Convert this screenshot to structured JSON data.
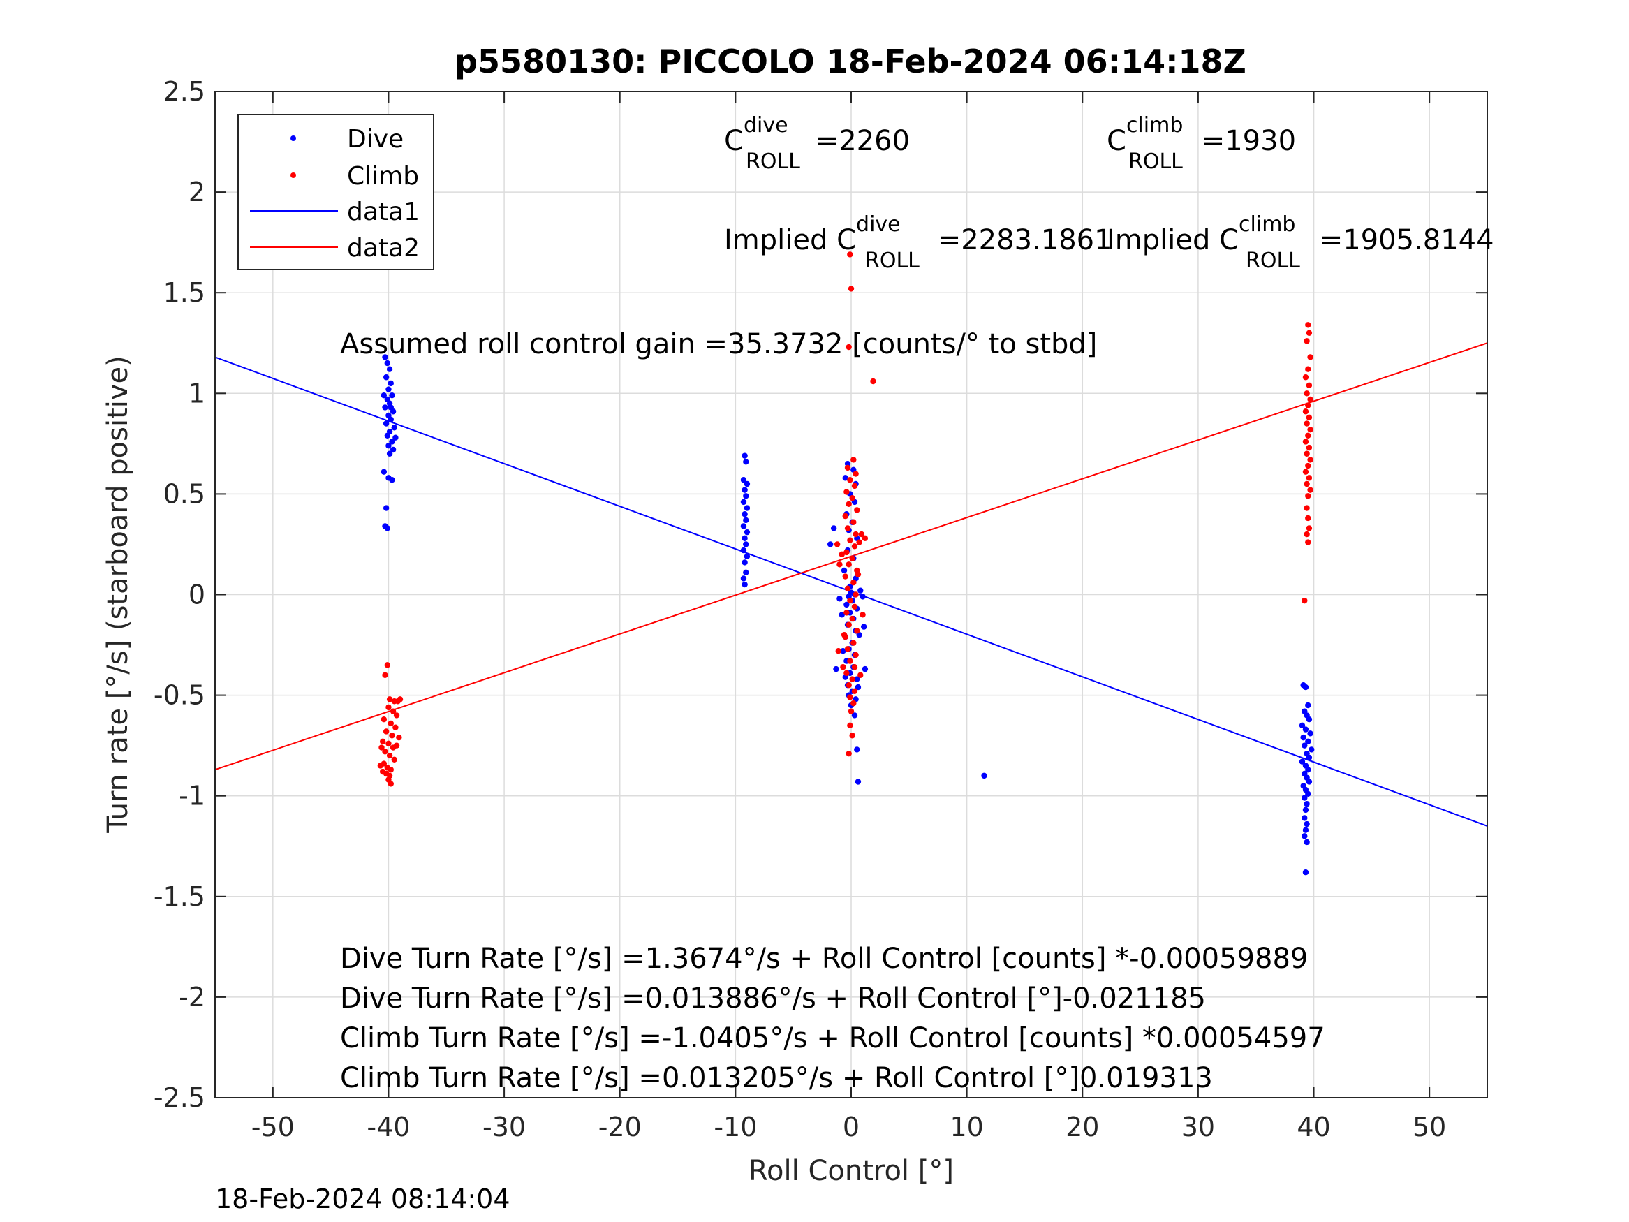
{
  "timestamp": "18-Feb-2024 08:14:04",
  "colors": {
    "dive": "#0000ff",
    "climb": "#ff0000",
    "grid": "#dcdcdc",
    "axis": "#262626"
  },
  "annotations": {
    "c_dive": {
      "pre": "C",
      "sup": "dive",
      "sub": "ROLL",
      "post": " =2260"
    },
    "c_climb": {
      "pre": "C",
      "sup": "climb",
      "sub": "ROLL",
      "post": " =1930"
    },
    "implied_dive": {
      "pre": "Implied C",
      "sup": "dive",
      "sub": "ROLL",
      "post": " =2283.1861"
    },
    "implied_climb": {
      "pre": "Implied C",
      "sup": "climb",
      "sub": "ROLL",
      "post": " =1905.8144"
    },
    "gain": "Assumed roll control gain =35.3732 [counts/° to stbd]",
    "eq1": "Dive Turn Rate [°/s] =1.3674°/s + Roll Control [counts] *-0.00059889",
    "eq2": "Dive Turn Rate [°/s] =0.013886°/s + Roll Control [°]-0.021185",
    "eq3": "Climb Turn Rate [°/s] =-1.0405°/s + Roll Control [counts] *0.00054597",
    "eq4": "Climb Turn Rate [°/s] =0.013205°/s + Roll Control [°]0.019313"
  },
  "chart_data": {
    "type": "scatter",
    "title": "p5580130: PICCOLO 18-Feb-2024 06:14:18Z",
    "xlabel": "Roll Control [°]",
    "ylabel": "Turn rate [°/s] (starboard positive)",
    "xlim": [
      -55,
      55
    ],
    "ylim": [
      -2.5,
      2.5
    ],
    "xticks": [
      -50,
      -40,
      -30,
      -20,
      -10,
      0,
      10,
      20,
      30,
      40,
      50
    ],
    "yticks": [
      2.5,
      2,
      1.5,
      1,
      0.5,
      0,
      -0.5,
      -1,
      -1.5,
      -2,
      -2.5
    ],
    "grid": true,
    "legend": {
      "placement": "top-left",
      "entries": [
        "Dive",
        "Climb",
        "data1",
        "data2"
      ]
    },
    "series": [
      {
        "name": "Dive",
        "kind": "points",
        "points": [
          [
            -40.3,
            1.18
          ],
          [
            -40.1,
            1.15
          ],
          [
            -39.9,
            1.12
          ],
          [
            -40.2,
            1.08
          ],
          [
            -39.8,
            1.05
          ],
          [
            -40.0,
            1.02
          ],
          [
            -39.7,
            0.99
          ],
          [
            -40.1,
            0.97
          ],
          [
            -39.9,
            0.95
          ],
          [
            -40.3,
            0.93
          ],
          [
            -39.6,
            0.91
          ],
          [
            -40.0,
            0.89
          ],
          [
            -39.8,
            0.87
          ],
          [
            -40.2,
            0.85
          ],
          [
            -39.5,
            0.83
          ],
          [
            -39.9,
            0.81
          ],
          [
            -40.1,
            0.79
          ],
          [
            -39.4,
            0.78
          ],
          [
            -39.7,
            0.76
          ],
          [
            -40.0,
            0.74
          ],
          [
            -39.6,
            0.72
          ],
          [
            -39.9,
            0.7
          ],
          [
            -40.4,
            0.61
          ],
          [
            -40.0,
            0.58
          ],
          [
            -39.7,
            0.57
          ],
          [
            -40.2,
            0.43
          ],
          [
            -40.3,
            0.34
          ],
          [
            -40.1,
            0.33
          ],
          [
            -39.8,
            0.93
          ],
          [
            -40.4,
            0.99
          ],
          [
            -9.2,
            0.69
          ],
          [
            -9.1,
            0.66
          ],
          [
            -9.3,
            0.57
          ],
          [
            -9.0,
            0.55
          ],
          [
            -9.2,
            0.52
          ],
          [
            -9.1,
            0.49
          ],
          [
            -9.3,
            0.46
          ],
          [
            -9.0,
            0.43
          ],
          [
            -9.2,
            0.4
          ],
          [
            -9.1,
            0.37
          ],
          [
            -9.3,
            0.34
          ],
          [
            -9.0,
            0.31
          ],
          [
            -9.2,
            0.28
          ],
          [
            -9.1,
            0.25
          ],
          [
            -9.3,
            0.22
          ],
          [
            -9.0,
            0.19
          ],
          [
            -9.2,
            0.16
          ],
          [
            -9.1,
            0.11
          ],
          [
            -9.3,
            0.08
          ],
          [
            -9.2,
            0.05
          ],
          [
            -0.3,
            0.65
          ],
          [
            0.2,
            0.62
          ],
          [
            -0.5,
            0.58
          ],
          [
            0.4,
            0.55
          ],
          [
            -0.1,
            0.5
          ],
          [
            0.3,
            0.46
          ],
          [
            -0.4,
            0.4
          ],
          [
            0.1,
            0.36
          ],
          [
            -0.2,
            0.32
          ],
          [
            0.5,
            0.28
          ],
          [
            -0.3,
            0.22
          ],
          [
            0.2,
            0.18
          ],
          [
            -0.6,
            0.12
          ],
          [
            0.4,
            0.08
          ],
          [
            -0.1,
            0.04
          ],
          [
            0.0,
            0.01
          ],
          [
            0.3,
            0.0
          ],
          [
            -0.2,
            -0.01
          ],
          [
            0.1,
            -0.03
          ],
          [
            -0.4,
            -0.05
          ],
          [
            0.5,
            -0.07
          ],
          [
            -0.1,
            -0.09
          ],
          [
            0.2,
            -0.12
          ],
          [
            -0.3,
            -0.15
          ],
          [
            0.4,
            -0.18
          ],
          [
            -0.5,
            -0.21
          ],
          [
            0.1,
            -0.24
          ],
          [
            -0.2,
            -0.27
          ],
          [
            0.3,
            -0.3
          ],
          [
            -0.4,
            -0.33
          ],
          [
            0.2,
            -0.36
          ],
          [
            -0.1,
            -0.39
          ],
          [
            0.5,
            -0.42
          ],
          [
            -0.3,
            -0.45
          ],
          [
            0.1,
            -0.48
          ],
          [
            -0.2,
            -0.5
          ],
          [
            0.4,
            -0.52
          ],
          [
            0.0,
            -0.55
          ],
          [
            -0.5,
            -0.41
          ],
          [
            0.6,
            -0.46
          ],
          [
            -0.7,
            -0.28
          ],
          [
            0.7,
            -0.2
          ],
          [
            -0.8,
            -0.1
          ],
          [
            0.8,
            0.02
          ],
          [
            -1.0,
            -0.02
          ],
          [
            1.0,
            -0.01
          ],
          [
            -1.3,
            -0.37
          ],
          [
            1.2,
            -0.37
          ],
          [
            -1.8,
            0.25
          ],
          [
            -1.5,
            0.33
          ],
          [
            1.1,
            -0.16
          ],
          [
            0.3,
            -0.6
          ],
          [
            0.5,
            -0.77
          ],
          [
            0.6,
            -0.93
          ],
          [
            11.5,
            -0.9
          ],
          [
            39.1,
            -0.45
          ],
          [
            39.3,
            -0.46
          ],
          [
            39.5,
            -0.55
          ],
          [
            39.2,
            -0.58
          ],
          [
            39.4,
            -0.6
          ],
          [
            39.6,
            -0.62
          ],
          [
            39.0,
            -0.65
          ],
          [
            39.3,
            -0.67
          ],
          [
            39.7,
            -0.69
          ],
          [
            39.1,
            -0.71
          ],
          [
            39.5,
            -0.73
          ],
          [
            39.2,
            -0.75
          ],
          [
            39.8,
            -0.77
          ],
          [
            39.4,
            -0.79
          ],
          [
            39.6,
            -0.81
          ],
          [
            39.0,
            -0.83
          ],
          [
            39.3,
            -0.85
          ],
          [
            39.5,
            -0.87
          ],
          [
            39.2,
            -0.89
          ],
          [
            39.4,
            -0.91
          ],
          [
            39.6,
            -0.93
          ],
          [
            39.1,
            -0.95
          ],
          [
            39.3,
            -0.97
          ],
          [
            39.5,
            -0.99
          ],
          [
            39.2,
            -1.01
          ],
          [
            39.4,
            -1.04
          ],
          [
            39.3,
            -1.07
          ],
          [
            39.2,
            -1.11
          ],
          [
            39.4,
            -1.14
          ],
          [
            39.3,
            -1.17
          ],
          [
            39.2,
            -1.2
          ],
          [
            39.4,
            -1.23
          ],
          [
            39.3,
            -1.38
          ]
        ]
      },
      {
        "name": "Climb",
        "kind": "points",
        "points": [
          [
            -40.1,
            -0.35
          ],
          [
            -40.3,
            -0.4
          ],
          [
            -39.9,
            -0.52
          ],
          [
            -39.5,
            -0.53
          ],
          [
            -39.2,
            -0.53
          ],
          [
            -39.0,
            -0.52
          ],
          [
            -40.0,
            -0.56
          ],
          [
            -39.6,
            -0.58
          ],
          [
            -39.3,
            -0.6
          ],
          [
            -40.4,
            -0.62
          ],
          [
            -39.8,
            -0.64
          ],
          [
            -39.4,
            -0.66
          ],
          [
            -40.2,
            -0.68
          ],
          [
            -39.7,
            -0.7
          ],
          [
            -39.1,
            -0.71
          ],
          [
            -40.5,
            -0.73
          ],
          [
            -40.0,
            -0.74
          ],
          [
            -39.6,
            -0.76
          ],
          [
            -40.6,
            -0.76
          ],
          [
            -40.3,
            -0.78
          ],
          [
            -39.9,
            -0.8
          ],
          [
            -39.5,
            -0.82
          ],
          [
            -40.4,
            -0.84
          ],
          [
            -40.1,
            -0.86
          ],
          [
            -39.8,
            -0.87
          ],
          [
            -40.5,
            -0.88
          ],
          [
            -40.2,
            -0.89
          ],
          [
            -39.9,
            -0.9
          ],
          [
            -40.0,
            -0.92
          ],
          [
            -39.8,
            -0.94
          ],
          [
            -40.7,
            -0.85
          ],
          [
            -39.3,
            -0.75
          ],
          [
            -0.1,
            1.69
          ],
          [
            0.0,
            1.52
          ],
          [
            -0.2,
            1.23
          ],
          [
            1.9,
            1.06
          ],
          [
            0.2,
            0.67
          ],
          [
            -0.3,
            0.63
          ],
          [
            0.4,
            0.6
          ],
          [
            -0.1,
            0.57
          ],
          [
            0.3,
            0.54
          ],
          [
            -0.4,
            0.51
          ],
          [
            0.1,
            0.48
          ],
          [
            -0.2,
            0.45
          ],
          [
            0.5,
            0.42
          ],
          [
            -0.5,
            0.39
          ],
          [
            0.2,
            0.36
          ],
          [
            -0.3,
            0.33
          ],
          [
            0.4,
            0.3
          ],
          [
            -0.1,
            0.27
          ],
          [
            0.3,
            0.24
          ],
          [
            -0.4,
            0.21
          ],
          [
            0.1,
            0.18
          ],
          [
            -0.2,
            0.15
          ],
          [
            0.5,
            0.12
          ],
          [
            -0.5,
            0.09
          ],
          [
            0.2,
            0.06
          ],
          [
            -0.3,
            0.03
          ],
          [
            0.4,
            0.0
          ],
          [
            -0.1,
            -0.03
          ],
          [
            0.3,
            -0.06
          ],
          [
            -0.4,
            -0.09
          ],
          [
            0.1,
            -0.12
          ],
          [
            -0.2,
            -0.15
          ],
          [
            0.5,
            -0.18
          ],
          [
            -0.5,
            -0.21
          ],
          [
            0.2,
            -0.24
          ],
          [
            -0.3,
            -0.27
          ],
          [
            0.4,
            -0.3
          ],
          [
            -0.1,
            -0.33
          ],
          [
            0.3,
            -0.36
          ],
          [
            -0.4,
            -0.39
          ],
          [
            0.1,
            -0.42
          ],
          [
            -0.2,
            -0.45
          ],
          [
            0.3,
            -0.48
          ],
          [
            -0.1,
            -0.51
          ],
          [
            0.2,
            -0.54
          ],
          [
            0.0,
            -0.58
          ],
          [
            -0.1,
            -0.65
          ],
          [
            0.1,
            -0.7
          ],
          [
            -0.2,
            -0.79
          ],
          [
            0.6,
            0.1
          ],
          [
            -0.6,
            -0.2
          ],
          [
            0.7,
            0.26
          ],
          [
            -0.8,
            0.2
          ],
          [
            0.9,
            0.3
          ],
          [
            -1.0,
            0.15
          ],
          [
            1.0,
            -0.1
          ],
          [
            -1.2,
            0.25
          ],
          [
            1.2,
            0.28
          ],
          [
            -1.1,
            -0.28
          ],
          [
            -0.7,
            -0.36
          ],
          [
            0.8,
            -0.4
          ],
          [
            39.5,
            1.34
          ],
          [
            39.6,
            1.3
          ],
          [
            39.4,
            1.26
          ],
          [
            39.7,
            1.18
          ],
          [
            39.5,
            1.12
          ],
          [
            39.3,
            1.08
          ],
          [
            39.6,
            1.04
          ],
          [
            39.4,
            1.0
          ],
          [
            39.7,
            0.97
          ],
          [
            39.5,
            0.94
          ],
          [
            39.3,
            0.91
          ],
          [
            39.6,
            0.88
          ],
          [
            39.4,
            0.85
          ],
          [
            39.7,
            0.82
          ],
          [
            39.5,
            0.79
          ],
          [
            39.3,
            0.76
          ],
          [
            39.6,
            0.73
          ],
          [
            39.4,
            0.7
          ],
          [
            39.7,
            0.67
          ],
          [
            39.5,
            0.64
          ],
          [
            39.3,
            0.61
          ],
          [
            39.6,
            0.58
          ],
          [
            39.4,
            0.55
          ],
          [
            39.7,
            0.52
          ],
          [
            39.5,
            0.49
          ],
          [
            39.4,
            0.43
          ],
          [
            39.5,
            0.38
          ],
          [
            39.6,
            0.33
          ],
          [
            39.4,
            0.3
          ],
          [
            39.5,
            0.26
          ],
          [
            39.2,
            -0.03
          ]
        ]
      },
      {
        "name": "data1",
        "kind": "line",
        "points": [
          [
            -55,
            1.18
          ],
          [
            55,
            -1.15
          ]
        ]
      },
      {
        "name": "data2",
        "kind": "line",
        "points": [
          [
            -55,
            -0.87
          ],
          [
            55,
            1.25
          ]
        ]
      }
    ]
  }
}
